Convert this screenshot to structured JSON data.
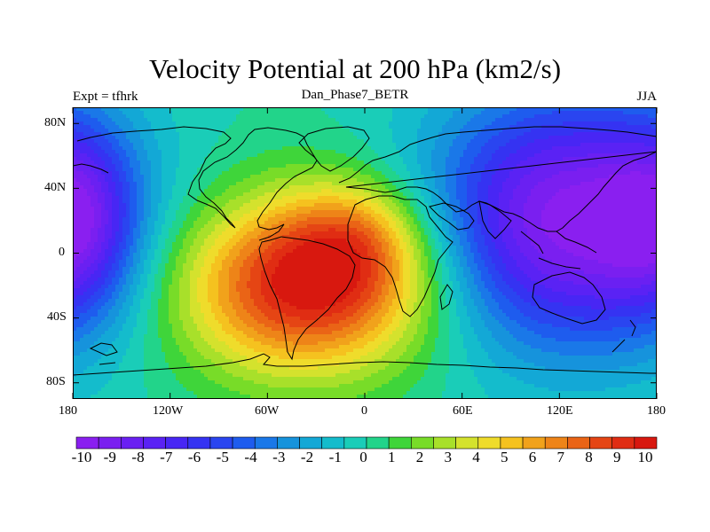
{
  "title": "Velocity Potential at 200 hPa (km2/s)",
  "subtitle": {
    "left": "Expt = tfhrk",
    "center": "Dan_Phase7_BETR",
    "right": "JJA"
  },
  "map": {
    "projection": "cylindrical equidistant",
    "lon_range": [
      -180,
      180
    ],
    "lat_range": [
      -90,
      90
    ],
    "lon_ticks": [
      {
        "value": -180,
        "label": "180"
      },
      {
        "value": -120,
        "label": "120W"
      },
      {
        "value": -60,
        "label": "60W"
      },
      {
        "value": 0,
        "label": "0"
      },
      {
        "value": 60,
        "label": "60E"
      },
      {
        "value": 120,
        "label": "120E"
      },
      {
        "value": 180,
        "label": "180"
      }
    ],
    "lat_ticks": [
      {
        "value": 80,
        "label": "80N"
      },
      {
        "value": 40,
        "label": "40N"
      },
      {
        "value": 0,
        "label": "0"
      },
      {
        "value": -40,
        "label": "40S"
      },
      {
        "value": -80,
        "label": "80S"
      }
    ],
    "field_features": [
      {
        "kind": "maximum",
        "lon": -35,
        "lat": -20,
        "value": 10.5,
        "spread_lon": 55,
        "spread_lat": 38
      },
      {
        "kind": "maximum",
        "lon": -5,
        "lat": 10,
        "value": 3.5,
        "spread_lon": 30,
        "spread_lat": 25
      },
      {
        "kind": "minimum",
        "lon": 125,
        "lat": 20,
        "value": -10.5,
        "spread_lon": 60,
        "spread_lat": 55
      },
      {
        "kind": "minimum",
        "lon": -175,
        "lat": 20,
        "value": -5,
        "spread_lon": 25,
        "spread_lat": 40
      }
    ]
  },
  "colorbar": {
    "levels": [
      -10,
      -9,
      -8,
      -7,
      -6,
      -5,
      -4,
      -3,
      -2,
      -1,
      0,
      1,
      2,
      3,
      4,
      5,
      6,
      7,
      8,
      9,
      10
    ],
    "labels": [
      "-10",
      "-9",
      "-8",
      "-7",
      "-6",
      "-5",
      "-4",
      "-3",
      "-2",
      "-1",
      "0",
      "1",
      "2",
      "3",
      "4",
      "5",
      "6",
      "7",
      "8",
      "9",
      "10"
    ],
    "colors": [
      "#8a1ff0",
      "#7a1ff0",
      "#6a20f2",
      "#5a22f4",
      "#4826f4",
      "#3533f2",
      "#2a45f0",
      "#1e5cee",
      "#1a78e8",
      "#1693dc",
      "#13a8d6",
      "#14bccc",
      "#1acdb8",
      "#22d48a",
      "#3fd53a",
      "#78dc28",
      "#a8e02a",
      "#d4e22d",
      "#efdc2b",
      "#f5c21f",
      "#f1a21b",
      "#ee8418",
      "#ea6416",
      "#e54514",
      "#e02d13",
      "#d8180f"
    ]
  },
  "chart_data": {
    "type": "heatmap",
    "title": "Velocity Potential at 200 hPa (km2/s)",
    "subtitle_left": "Expt = tfhrk",
    "subtitle_center": "Dan_Phase7_BETR",
    "subtitle_right": "JJA",
    "x": [
      -180,
      -120,
      -60,
      0,
      60,
      120,
      180
    ],
    "y": [
      -80,
      -40,
      0,
      40,
      80
    ],
    "xlabel": "",
    "ylabel": "",
    "zlim": [
      -10,
      10
    ],
    "contour_levels": [
      -10,
      -9,
      -8,
      -7,
      -6,
      -5,
      -4,
      -3,
      -2,
      -1,
      0,
      1,
      2,
      3,
      4,
      5,
      6,
      7,
      8,
      9,
      10
    ]
  }
}
